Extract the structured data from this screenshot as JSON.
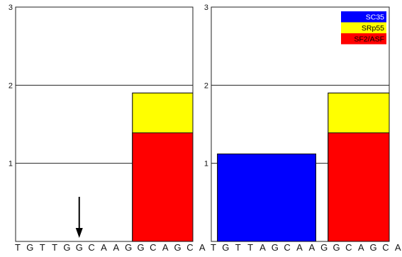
{
  "chart_data": [
    {
      "type": "bar",
      "title": "",
      "xlabel": "",
      "ylabel": "",
      "ylim": [
        0,
        3
      ],
      "yticks": [
        1,
        2,
        3
      ],
      "sequence": [
        "T",
        "G",
        "T",
        "T",
        "G",
        "G",
        "C",
        "A",
        "A",
        "G",
        "G",
        "C",
        "A",
        "G",
        "C",
        "A"
      ],
      "annotations": [
        {
          "kind": "arrow-down",
          "position": 6,
          "label": ""
        }
      ],
      "series": [
        {
          "name": "SC35",
          "color": "#0000ff",
          "segments": []
        },
        {
          "name": "SRp55",
          "color": "#ffff00",
          "segments": [
            {
              "start": 10,
              "end": 16,
              "value": 1.9
            }
          ]
        },
        {
          "name": "SF2/ASF",
          "color": "#ff0000",
          "segments": [
            {
              "start": 10,
              "end": 17,
              "value": 1.39
            }
          ]
        }
      ],
      "grid": true,
      "legend": false
    },
    {
      "type": "bar",
      "title": "",
      "xlabel": "",
      "ylabel": "",
      "ylim": [
        0,
        3
      ],
      "yticks": [
        1,
        2,
        3
      ],
      "sequence": [
        "T",
        "G",
        "T",
        "T",
        "A",
        "G",
        "C",
        "A",
        "A",
        "G",
        "G",
        "C",
        "A",
        "G",
        "C",
        "A"
      ],
      "annotations": [],
      "series": [
        {
          "name": "SC35",
          "color": "#0000ff",
          "segments": [
            {
              "start": 1,
              "end": 9,
              "value": 1.12
            }
          ]
        },
        {
          "name": "SRp55",
          "color": "#ffff00",
          "segments": [
            {
              "start": 10,
              "end": 16,
              "value": 1.9
            }
          ]
        },
        {
          "name": "SF2/ASF",
          "color": "#ff0000",
          "segments": [
            {
              "start": 10,
              "end": 17,
              "value": 1.39
            }
          ]
        }
      ],
      "grid": true,
      "legend": "top-right"
    }
  ],
  "legend": {
    "items": [
      {
        "label": "SC35",
        "color": "#0000ff"
      },
      {
        "label": "SRp55",
        "color": "#ffff00"
      },
      {
        "label": "SF2/ASF",
        "color": "#ff0000"
      }
    ]
  }
}
